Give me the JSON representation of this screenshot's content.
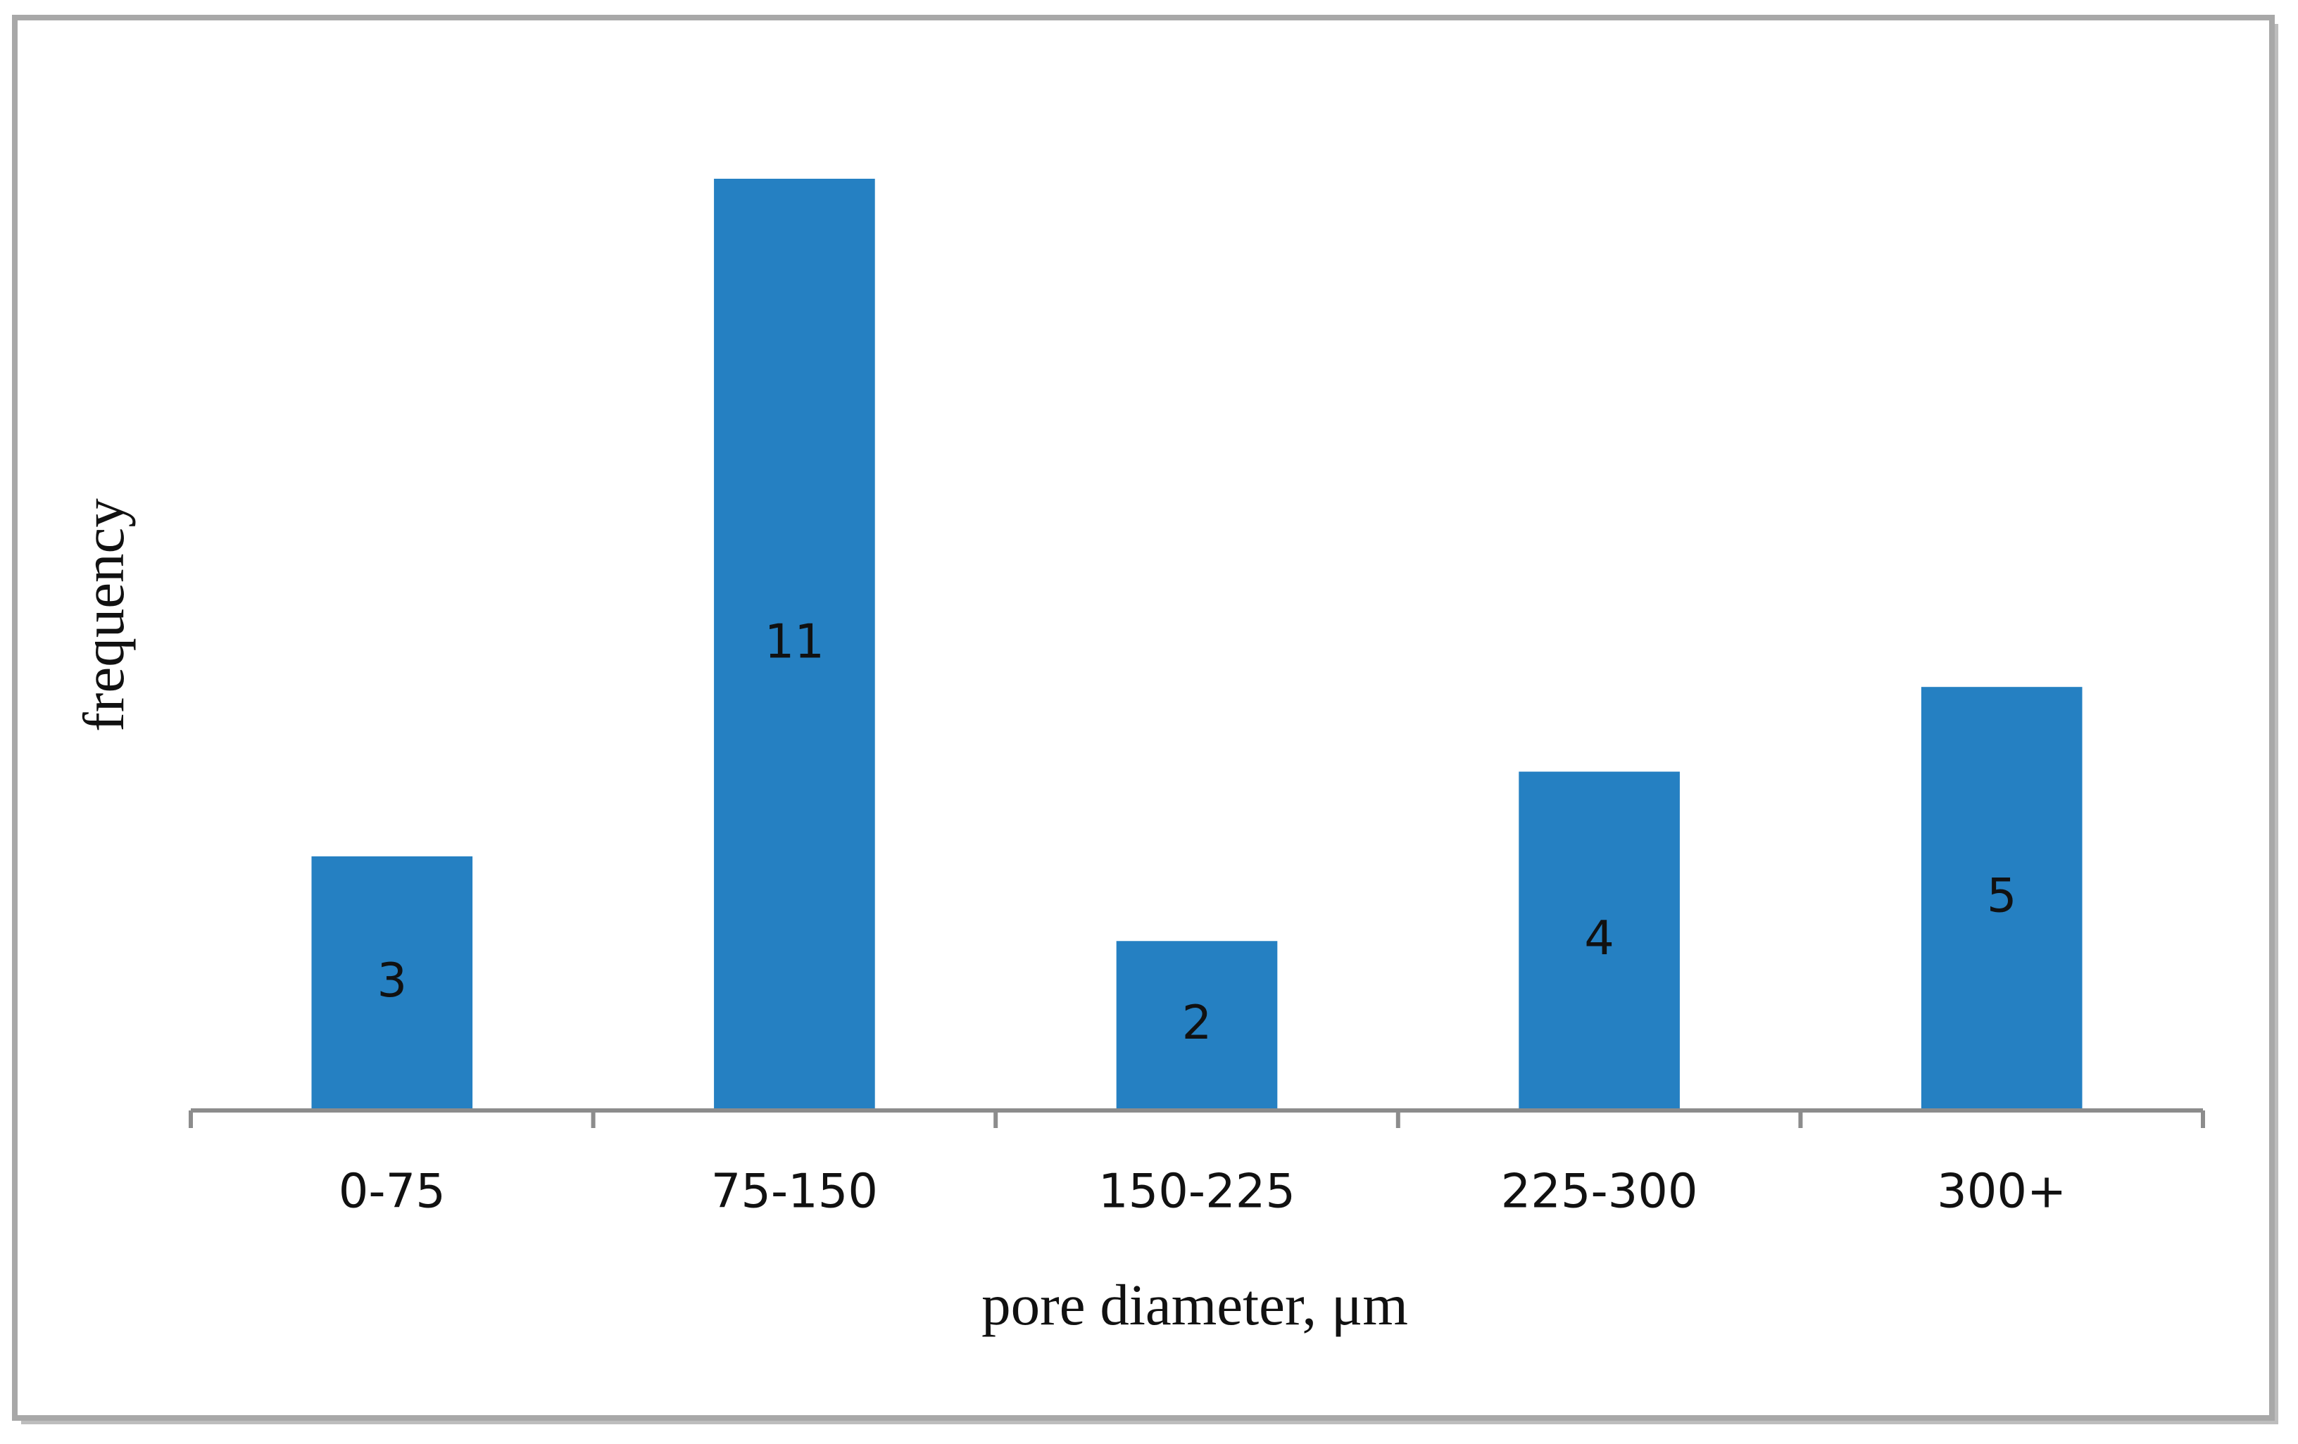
{
  "chart_data": {
    "type": "bar",
    "x_label": "pore diameter, μm",
    "y_label": "frequency",
    "categories": [
      "0-75",
      "75-150",
      "150-225",
      "225-300",
      "300+"
    ],
    "values": [
      3,
      11,
      2,
      4,
      5
    ],
    "color": "#2580c2",
    "data_labels": true
  }
}
